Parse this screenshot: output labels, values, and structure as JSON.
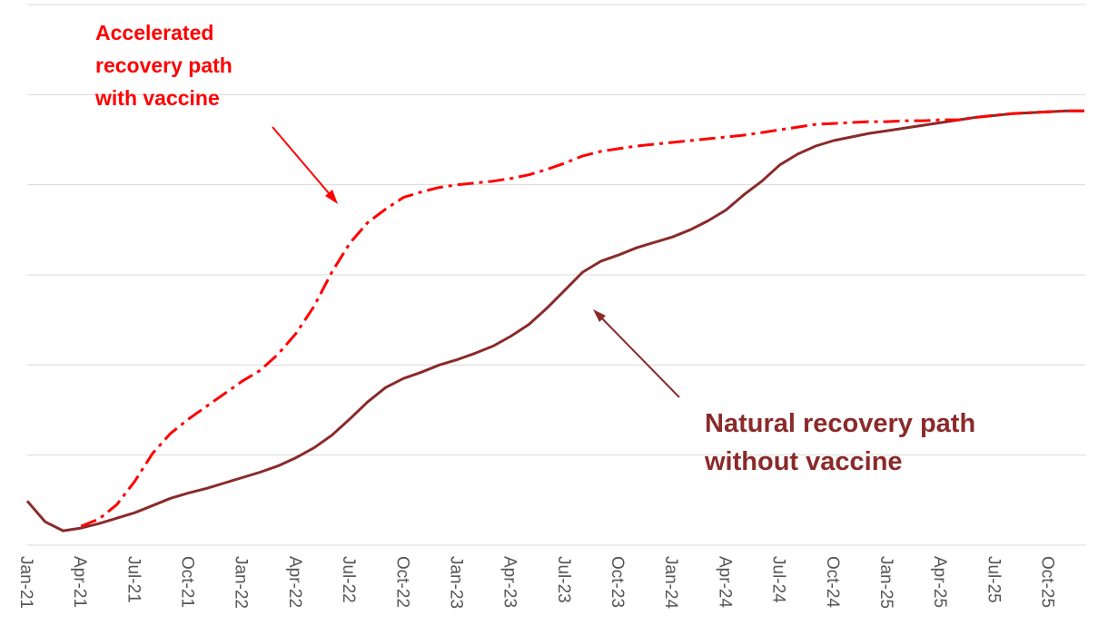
{
  "chart_data": {
    "type": "line",
    "categories": [
      "Jan-21",
      null,
      null,
      "Apr-21",
      null,
      null,
      "Jul-21",
      null,
      null,
      "Oct-21",
      null,
      null,
      "Jan-22",
      null,
      null,
      "Apr-22",
      null,
      null,
      "Jul-22",
      null,
      null,
      "Oct-22",
      null,
      null,
      "Jan-23",
      null,
      null,
      "Apr-23",
      null,
      null,
      "Jul-23",
      null,
      null,
      "Oct-23",
      null,
      null,
      "Jan-24",
      null,
      null,
      "Apr-24",
      null,
      null,
      "Jul-24",
      null,
      null,
      "Oct-24",
      null,
      null,
      "Jan-25",
      null,
      null,
      "Apr-25",
      null,
      null,
      "Jul-25",
      null,
      null,
      "Oct-25",
      null,
      null
    ],
    "series": [
      {
        "name": "Natural recovery path without vaccine",
        "color": "#8b2a2a",
        "dash": false,
        "values": [
          0.49,
          0.26,
          0.16,
          0.19,
          0.24,
          0.3,
          0.36,
          0.44,
          0.52,
          0.58,
          0.63,
          0.69,
          0.75,
          0.81,
          0.88,
          0.97,
          1.08,
          1.22,
          1.4,
          1.59,
          1.75,
          1.85,
          1.92,
          2.0,
          2.06,
          2.13,
          2.21,
          2.32,
          2.45,
          2.63,
          2.83,
          3.03,
          3.15,
          3.22,
          3.3,
          3.36,
          3.42,
          3.5,
          3.6,
          3.72,
          3.89,
          4.04,
          4.22,
          4.34,
          4.43,
          4.49,
          4.53,
          4.57,
          4.6,
          4.63,
          4.66,
          4.69,
          4.72,
          4.75,
          4.77,
          4.79,
          4.8,
          4.81,
          4.82,
          4.82
        ]
      },
      {
        "name": "Accelerated recovery path with vaccine",
        "color": "#ff0000",
        "dash": true,
        "values": [
          null,
          null,
          null,
          0.21,
          0.29,
          0.45,
          0.71,
          1.02,
          1.24,
          1.4,
          1.54,
          1.68,
          1.82,
          1.94,
          2.12,
          2.35,
          2.65,
          3.03,
          3.35,
          3.58,
          3.73,
          3.86,
          3.92,
          3.97,
          4.0,
          4.02,
          4.04,
          4.07,
          4.11,
          4.17,
          4.24,
          4.32,
          4.37,
          4.4,
          4.43,
          4.45,
          4.47,
          4.49,
          4.51,
          4.53,
          4.55,
          4.58,
          4.61,
          4.64,
          4.67,
          4.68,
          4.69,
          4.7,
          4.7,
          4.71,
          4.71,
          4.72,
          4.72,
          4.75,
          4.77,
          4.79,
          4.8,
          4.81,
          4.82,
          4.82
        ]
      }
    ],
    "annotations": [
      {
        "lines": [
          "Accelerated",
          "recovery path",
          "with vaccine"
        ],
        "color": "#ff0000"
      },
      {
        "lines": [
          "Natural recovery path",
          "without vaccine"
        ],
        "color": "#8b2a2a"
      }
    ],
    "ylim": [
      0,
      6
    ],
    "yticks": [
      0,
      1,
      2,
      3,
      4,
      5,
      6
    ],
    "grid": true
  }
}
